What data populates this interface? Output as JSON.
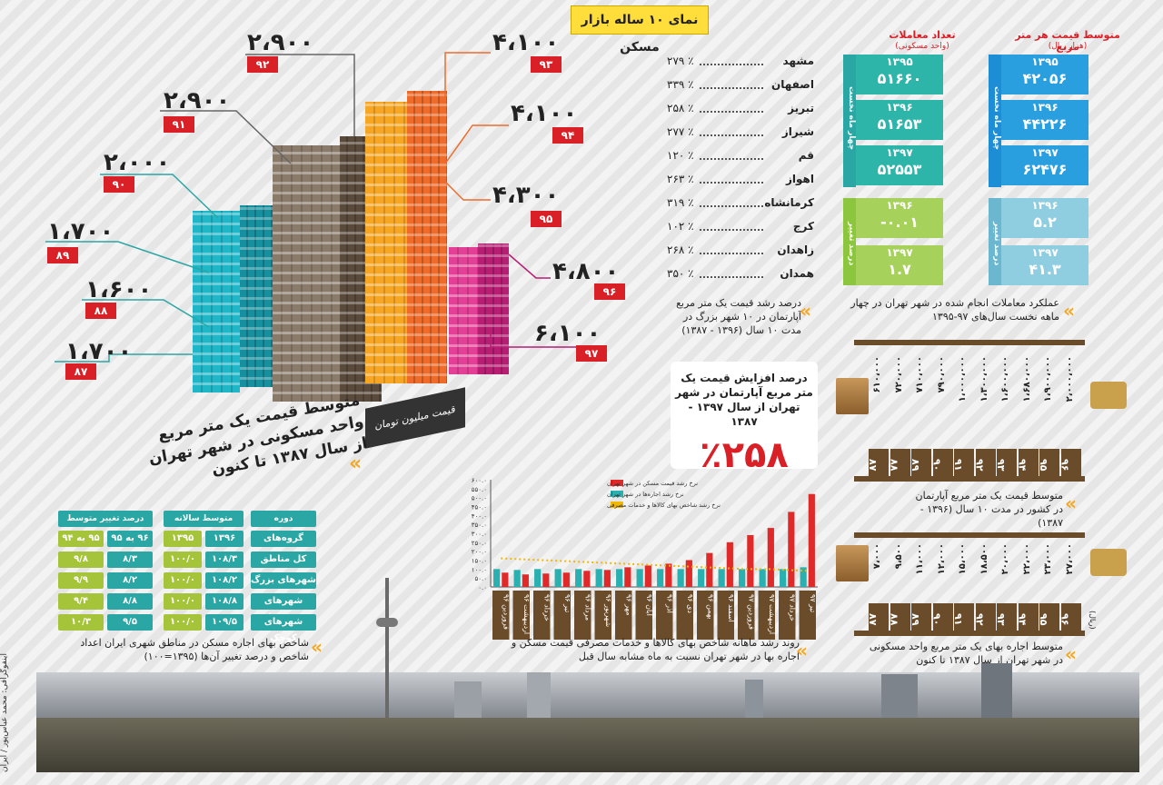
{
  "title": "نمای ۱۰ ساله بازار مسکن",
  "main_chart": {
    "caption": "متوسط قیمت یک متر مربع واحد مسکونی در شهر تهران از سال ۱۳۸۷ تا کنون",
    "unit_label": "قیمت میلیون تومان",
    "items": [
      {
        "year": "۸۷",
        "value": "۱،۷۰۰"
      },
      {
        "year": "۸۸",
        "value": "۱،۶۰۰"
      },
      {
        "year": "۸۹",
        "value": "۱،۷۰۰"
      },
      {
        "year": "۹۰",
        "value": "۲،۰۰۰"
      },
      {
        "year": "۹۱",
        "value": "۲،۹۰۰"
      },
      {
        "year": "۹۲",
        "value": "۲،۹۰۰"
      },
      {
        "year": "۹۳",
        "value": "۴،۱۰۰"
      },
      {
        "year": "۹۴",
        "value": "۴،۱۰۰"
      },
      {
        "year": "۹۵",
        "value": "۴،۳۰۰"
      },
      {
        "year": "۹۶",
        "value": "۴،۸۰۰"
      },
      {
        "year": "۹۷",
        "value": "۶،۱۰۰"
      }
    ]
  },
  "city_growth": {
    "caption": "درصد رشد قیمت یک متر مربع آپارتمان در ۱۰ شهر بزرگ در مدت ۱۰ سال (۱۳۹۶ - ۱۳۸۷)",
    "cities": [
      {
        "name": "مشهد",
        "value": "٪ ۲۷۹"
      },
      {
        "name": "اصفهان",
        "value": "٪ ۳۳۹"
      },
      {
        "name": "تبریز",
        "value": "٪ ۲۵۸"
      },
      {
        "name": "شیراز",
        "value": "٪ ۲۷۷"
      },
      {
        "name": "قم",
        "value": "٪ ۱۲۰"
      },
      {
        "name": "اهواز",
        "value": "٪ ۲۶۳"
      },
      {
        "name": "کرمانشاه",
        "value": "٪ ۳۱۹"
      },
      {
        "name": "کرج",
        "value": "٪ ۱۰۲"
      },
      {
        "name": "زاهدان",
        "value": "٪ ۲۶۸"
      },
      {
        "name": "همدان",
        "value": "٪ ۳۵۰"
      }
    ]
  },
  "tehran_growth": {
    "text": "درصد افزایش قیمت یک متر مربع آپارتمان در شهر تهران از سال ۱۳۹۷ - ۱۳۸۷",
    "value": "٪۲۵۸"
  },
  "transactions": {
    "caption": "عملکرد معاملات انجام شده در شهر تهران در چهار ماهه نخست سال‌های ۹۷-۱۳۹۵",
    "count_head": "تعداد معاملات",
    "count_sub": "(واحد مسکونی)",
    "price_head": "متوسط قیمت هر متر مربع",
    "price_sub": "(هزار ریال)",
    "period_label": "چهار ماه نخست",
    "change_label": "درصد تغییر",
    "count_rows": [
      {
        "year": "۱۳۹۵",
        "value": "۵۱۶۶۰"
      },
      {
        "year": "۱۳۹۶",
        "value": "۵۱۶۵۳"
      },
      {
        "year": "۱۳۹۷",
        "value": "۵۲۵۵۳"
      }
    ],
    "count_change": [
      {
        "year": "۱۳۹۶",
        "value": "-۰.۰۱"
      },
      {
        "year": "۱۳۹۷",
        "value": "۱.۷"
      }
    ],
    "price_rows": [
      {
        "year": "۱۳۹۵",
        "value": "۴۲۰۵۶"
      },
      {
        "year": "۱۳۹۶",
        "value": "۴۴۲۲۶"
      },
      {
        "year": "۱۳۹۷",
        "value": "۶۲۴۷۶"
      }
    ],
    "price_change": [
      {
        "year": "۱۳۹۶",
        "value": "۵.۲"
      },
      {
        "year": "۱۳۹۷",
        "value": "۴۱.۳"
      }
    ]
  },
  "country_price": {
    "caption": "متوسط قیمت یک متر مربع آپارتمان در کشور در مدت ۱۰ سال (۱۳۹۶ - ۱۳۸۷)",
    "years": [
      "۸۷",
      "۸۸",
      "۸۹",
      "۹۰",
      "۹۱",
      "۹۲",
      "۹۳",
      "۹۴",
      "۹۵",
      "۹۶"
    ],
    "values": [
      "۶۱۰،۰۰۰",
      "۷۲۰،۰۰۰",
      "۷۱۰،۰۰۰",
      "۷۹۰،۰۰۰",
      "۱،۰۰۰،۰۰۰",
      "۱،۳۰۰،۰۰۰",
      "۱،۶۰۰،۰۰۰",
      "۱،۶۸۰،۰۰۰",
      "۱،۹۰۰،۰۰۰",
      "۲،۰۰۰،۰۰۰"
    ]
  },
  "rent_price": {
    "caption": "متوسط اجاره بهای یک متر مربع واحد مسکونی در شهر تهران از سال ۱۳۸۷ تا کنون",
    "unit": "(ریال)",
    "years": [
      "۸۷",
      "۸۸",
      "۸۹",
      "۹۰",
      "۹۱",
      "۹۲",
      "۹۳",
      "۹۴",
      "۹۵",
      "۹۶"
    ],
    "values": [
      "۷،۰۰۰",
      "۹،۵۰۰",
      "۱۱،۰۰۰",
      "۱۲،۰۰۰",
      "۱۵،۰۰۰",
      "۱۸،۵۰۰",
      "۲۰،۰۰۰",
      "۲۲،۰۰۰",
      "۲۳،۰۰۰",
      "۲۷،۰۰۰"
    ]
  },
  "index_table": {
    "caption": "شاخص بهای اجاره مسکن در مناطق شهری ایران اعداد شاخص و درصد تغییر آن‌ها (۱۳۹۵=۱۰۰)",
    "headers": {
      "period": "دوره",
      "annual_avg": "متوسط سالانه شاخص",
      "change": "درصد تغییر متوسط شاخص"
    },
    "sub_headers": [
      "گروه‌های شهری",
      "۱۳۹۶",
      "۱۳۹۵",
      "۹۶ به ۹۵",
      "۹۵ به ۹۴"
    ],
    "rows": [
      {
        "group": "کل مناطق شهری",
        "y96": "۱۰۸/۳",
        "y95": "۱۰۰/۰",
        "c1": "۸/۳",
        "c2": "۹/۸"
      },
      {
        "group": "شهرهای بزرگ",
        "y96": "۱۰۸/۲",
        "y95": "۱۰۰/۰",
        "c1": "۸/۲",
        "c2": "۹/۹"
      },
      {
        "group": "شهرهای متوسط",
        "y96": "۱۰۸/۸",
        "y95": "۱۰۰/۰",
        "c1": "۸/۸",
        "c2": "۹/۴"
      },
      {
        "group": "شهرهای کوچک",
        "y96": "۱۰۹/۵",
        "y95": "۱۰۰/۰",
        "c1": "۹/۵",
        "c2": "۱۰/۳"
      }
    ]
  },
  "monthly_chart": {
    "caption": "روند رشد ماهانه شاخص بهای کالاها و خدمات مصرفی قیمت مسکن و اجاره بها در شهر تهران نسبت به ماه مشابه سال قبل",
    "legend": [
      {
        "label": "نرخ رشد قیمت مسکن در شهر تهران",
        "color": "#e02a2a"
      },
      {
        "label": "نرخ رشد اجاره‌ها در شهر تهران",
        "color": "#2ab0b0"
      },
      {
        "label": "نرخ رشد شاخص بهای کالاها و خدمات مصرفی",
        "color": "#f2b705"
      }
    ],
    "y_ticks": [
      "۰.۰",
      "۵۰.۰",
      "۱۰۰.۰",
      "۱۵۰.۰",
      "۲۰۰.۰",
      "۲۵۰.۰",
      "۳۰۰.۰",
      "۳۵۰.۰",
      "۴۰۰.۰",
      "۴۵۰.۰",
      "۵۰۰.۰",
      "۵۵۰.۰",
      "۶۰۰.۰"
    ],
    "categories": [
      "فروردین ۹۶",
      "اردیبهشت ۹۶",
      "خرداد ۹۶",
      "تیر ۹۶",
      "مرداد ۹۶",
      "شهریور ۹۶",
      "مهر ۹۶",
      "آبان ۹۶",
      "آذر ۹۶",
      "دی ۹۶",
      "بهمن ۹۶",
      "اسفند ۹۶",
      "فروردین ۹۷",
      "اردیبهشت ۹۷",
      "خرداد ۹۷",
      "تیر ۹۷"
    ],
    "housing": [
      80,
      70,
      75,
      80,
      90,
      95,
      110,
      120,
      130,
      150,
      190,
      250,
      290,
      330,
      420,
      520
    ],
    "rent": [
      100,
      95,
      100,
      100,
      100,
      100,
      100,
      100,
      100,
      100,
      100,
      100,
      100,
      100,
      100,
      110
    ],
    "cpi": [
      160,
      155,
      150,
      145,
      140,
      135,
      130,
      125,
      120,
      115,
      110,
      105,
      100,
      100,
      95,
      90
    ],
    "ylim": [
      0,
      600
    ]
  },
  "credit": "اینفوگرافی: محمد عباس‌پور / ایران"
}
